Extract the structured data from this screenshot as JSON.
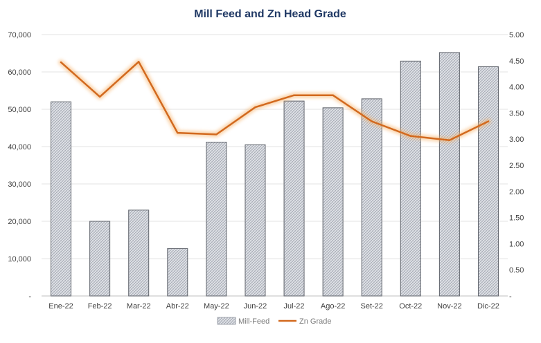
{
  "chart_data": {
    "type": "bar",
    "title": "Mill Feed and Zn Head Grade",
    "categories": [
      "Ene-22",
      "Feb-22",
      "Mar-22",
      "Abr-22",
      "May-22",
      "Jun-22",
      "Jul-22",
      "Ago-22",
      "Set-22",
      "Oct-22",
      "Nov-22",
      "Dic-22"
    ],
    "series": [
      {
        "name": "Mill-Feed",
        "type": "bar",
        "axis": "left",
        "values": [
          52000,
          20000,
          23000,
          12700,
          41200,
          40500,
          52200,
          50400,
          52800,
          62900,
          65200,
          61400
        ],
        "color": "#c9cdd6"
      },
      {
        "name": "Zn Grade",
        "type": "line",
        "axis": "right",
        "values": [
          4.47,
          3.81,
          4.48,
          3.12,
          3.09,
          3.61,
          3.84,
          3.84,
          3.34,
          3.06,
          2.98,
          3.34
        ],
        "color": "#d2691e"
      }
    ],
    "yLeft": {
      "min": 0,
      "max": 70000,
      "ticks": [
        "-",
        "10,000",
        "20,000",
        "30,000",
        "40,000",
        "50,000",
        "60,000",
        "70,000"
      ]
    },
    "yRight": {
      "min": 0,
      "max": 5,
      "ticks": [
        "-",
        "0.50",
        "1.00",
        "1.50",
        "2.00",
        "2.50",
        "3.00",
        "3.50",
        "4.00",
        "4.50",
        "5.00"
      ]
    },
    "grid": true,
    "legend_position": "bottom"
  }
}
